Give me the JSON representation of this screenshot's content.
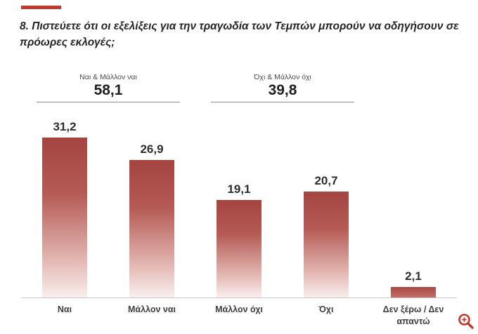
{
  "accent_color": "#c0392b",
  "bar_color_top": "#a54441",
  "bar_color_bottom": "#f8efee",
  "icons": {
    "zoom": "magnifier-plus-icon"
  },
  "chart_data": {
    "type": "bar",
    "title": "8. Πιστεύετε ότι οι εξελίξεις για την τραγωδία των Τεμπών μπορούν να οδηγήσουν σε πρόωρες εκλογές;",
    "categories": [
      "Ναι",
      "Μάλλον ναι",
      "Μάλλον όχι",
      "Όχι",
      "Δεν ξέρω / Δεν απαντώ"
    ],
    "values": [
      31.2,
      26.9,
      19.1,
      20.7,
      2.1
    ],
    "value_labels": [
      "31,2",
      "26,9",
      "19,1",
      "20,7",
      "2,1"
    ],
    "groups": [
      {
        "label": "Ναι & Μάλλον ναι",
        "value": "58,1",
        "value_numeric": 58.1,
        "span": [
          0,
          1
        ]
      },
      {
        "label": "Όχι & Μάλλον όχι",
        "value": "39,8",
        "value_numeric": 39.8,
        "span": [
          2,
          3
        ]
      }
    ],
    "xlabel": "",
    "ylabel": "",
    "ylim": [
      0,
      33
    ],
    "grid": false,
    "legend": false,
    "gradient_bars": true
  }
}
